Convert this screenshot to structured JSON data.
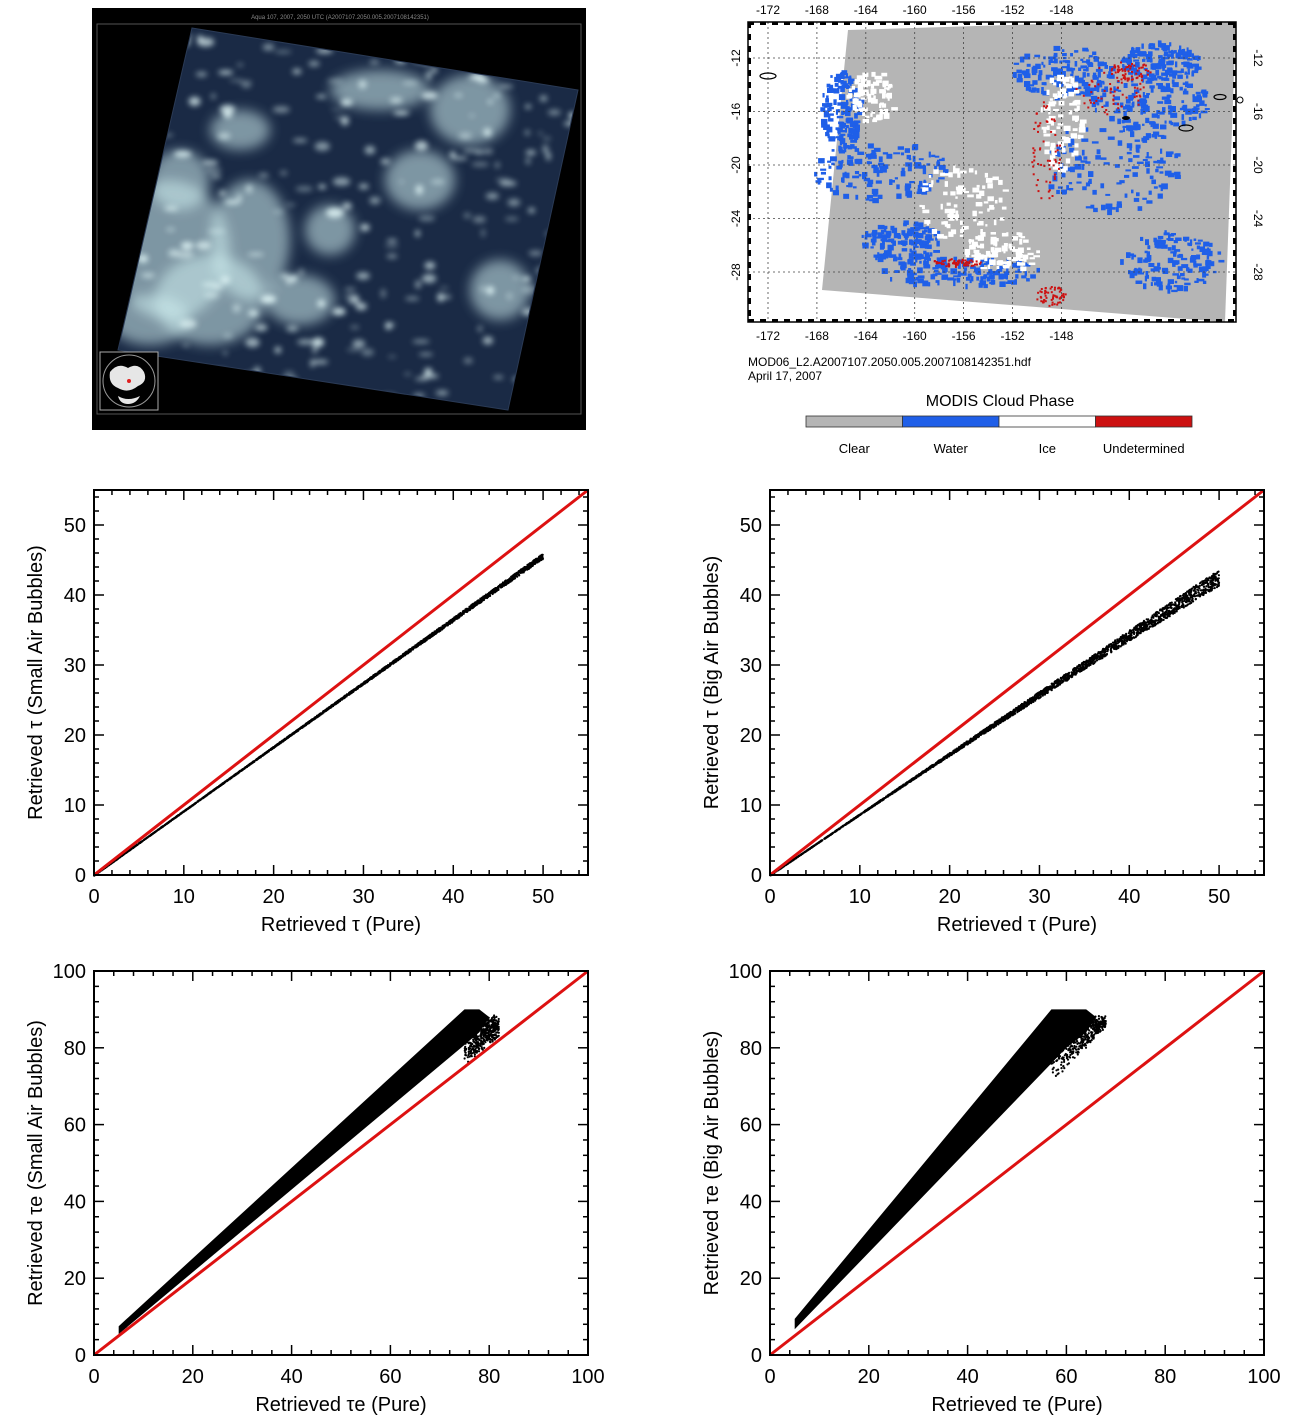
{
  "satellite_panel": {
    "header_text": "Aqua 107, 2007, 2050 UTC  (A2007107.2050.005.2007108142351)"
  },
  "map_panel": {
    "lon_ticks": [
      "-172",
      "-168",
      "-164",
      "-160",
      "-156",
      "-152",
      "-148"
    ],
    "lat_ticks": [
      "-12",
      "-16",
      "-20",
      "-24",
      "-28"
    ],
    "file_name": "MOD06_L2.A2007107.2050.005.2007108142351.hdf",
    "date": "April 17, 2007",
    "legend_title": "MODIS Cloud Phase",
    "legend": [
      {
        "label": "Clear",
        "color": "#b5b5b5"
      },
      {
        "label": "Water",
        "color": "#1f5fe8"
      },
      {
        "label": "Ice",
        "color": "#ffffff"
      },
      {
        "label": "Undetermined",
        "color": "#cc1111"
      }
    ]
  },
  "chart_data": [
    {
      "type": "scatter",
      "xlabel": "Retrieved τ (Pure)",
      "ylabel": "Retrieved τ (Small Air Bubbles)",
      "xlim": [
        0,
        55
      ],
      "ylim": [
        0,
        55
      ],
      "xticks": [
        0,
        10,
        20,
        30,
        40,
        50
      ],
      "yticks": [
        0,
        10,
        20,
        30,
        40,
        50
      ],
      "reference_line": {
        "name": "1:1",
        "color": "#dd1111"
      },
      "series": [
        {
          "slope": 0.92,
          "x_range": [
            0,
            50
          ],
          "spread": [
            0,
            0.6
          ]
        }
      ]
    },
    {
      "type": "scatter",
      "xlabel": "Retrieved τ (Pure)",
      "ylabel": "Retrieved τ (Big Air Bubbles)",
      "xlim": [
        0,
        55
      ],
      "ylim": [
        0,
        55
      ],
      "xticks": [
        0,
        10,
        20,
        30,
        40,
        50
      ],
      "yticks": [
        0,
        10,
        20,
        30,
        40,
        50
      ],
      "reference_line": {
        "name": "1:1",
        "color": "#dd1111"
      },
      "series": [
        {
          "slope": 0.875,
          "x_range": [
            0,
            50
          ],
          "spread": [
            0,
            2.2
          ]
        }
      ]
    },
    {
      "type": "scatter",
      "xlabel": "Retrieved τe (Pure)",
      "ylabel": "Retrieved τe (Small Air Bubbles)",
      "xlim": [
        0,
        100
      ],
      "ylim": [
        0,
        100
      ],
      "xticks": [
        0,
        20,
        40,
        60,
        80,
        100
      ],
      "yticks": [
        0,
        20,
        40,
        60,
        80,
        100
      ],
      "reference_line": {
        "name": "1:1",
        "color": "#dd1111"
      },
      "series": [
        {
          "lower_slope": 1.05,
          "upper_slope": 1.2,
          "x_range": [
            5,
            82
          ],
          "y_max": 90
        }
      ]
    },
    {
      "type": "scatter",
      "xlabel": "Retrieved τe (Pure)",
      "ylabel": "Retrieved τe (Big Air Bubbles)",
      "xlim": [
        0,
        100
      ],
      "ylim": [
        0,
        100
      ],
      "xticks": [
        0,
        20,
        40,
        60,
        80,
        100
      ],
      "yticks": [
        0,
        20,
        40,
        60,
        80,
        100
      ],
      "reference_line": {
        "name": "1:1",
        "color": "#dd1111"
      },
      "series": [
        {
          "lower_slope": 1.3,
          "upper_slope": 1.58,
          "x_range": [
            5,
            68
          ],
          "y_max": 90
        }
      ]
    }
  ]
}
